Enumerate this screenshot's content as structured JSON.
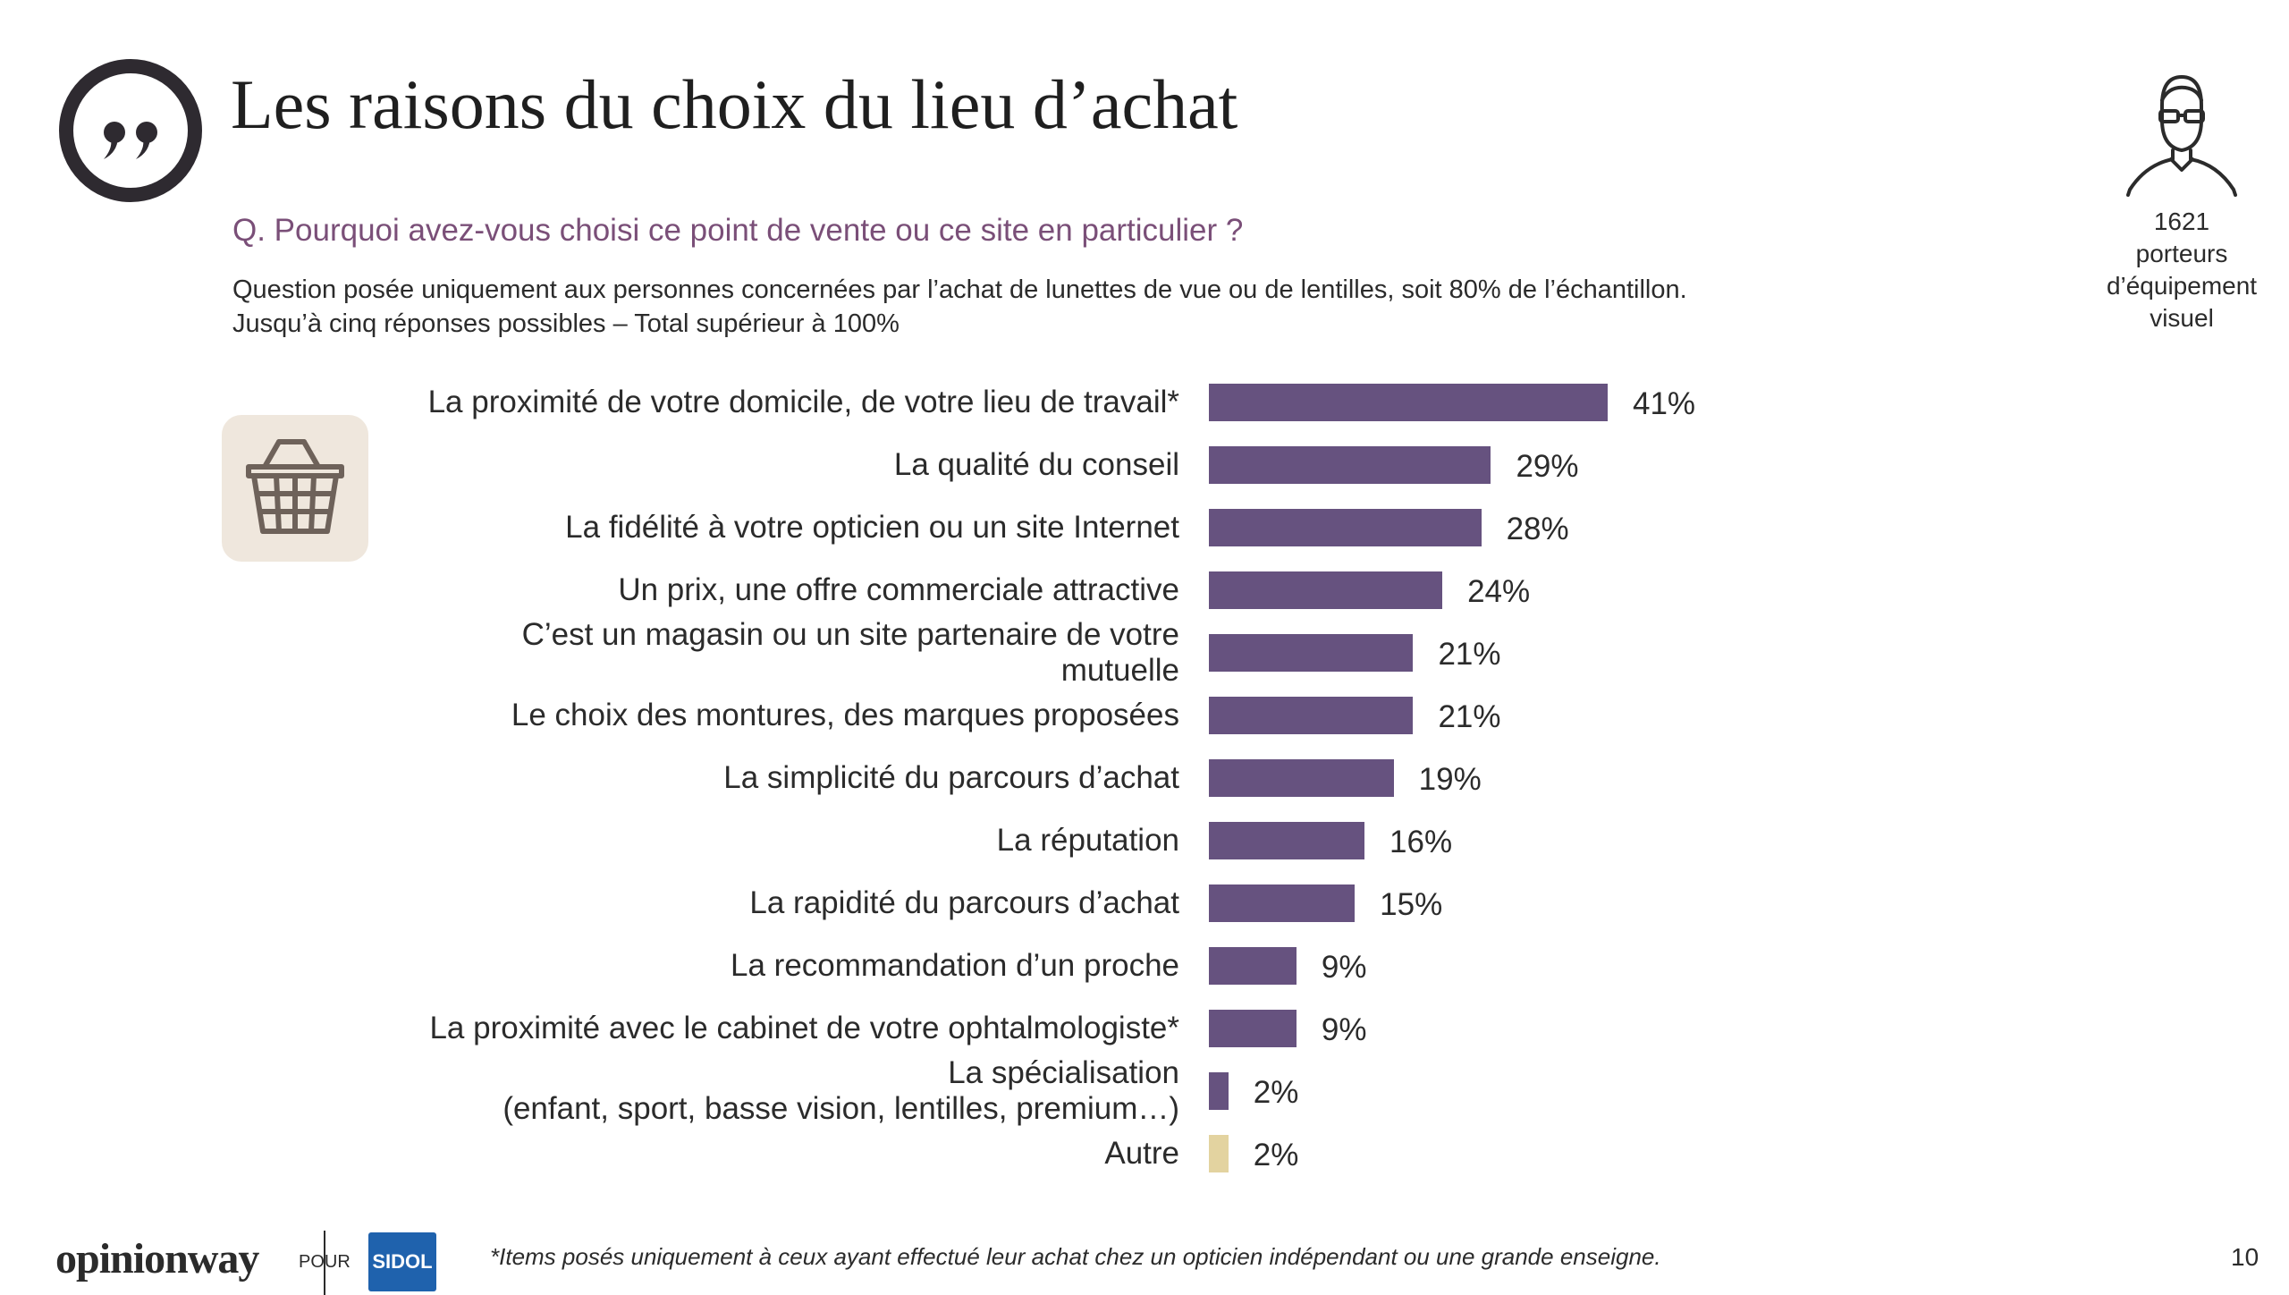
{
  "header": {
    "title": "Les raisons du choix du lieu d’achat",
    "question": "Q. Pourquoi avez-vous choisi ce point de vente ou ce site en particulier ?",
    "note_line1": "Question posée uniquement aux personnes concernées par l’achat de lunettes de vue ou de lentilles, soit 80% de l’échantillon.",
    "note_line2": "Jusqu’à cinq réponses possibles – Total supérieur à 100%"
  },
  "sample": {
    "count": "1621",
    "description_lines": [
      "porteurs",
      "d’équipement",
      "visuel"
    ]
  },
  "icons": {
    "header": "quote-icon",
    "sample": "person-with-glasses-icon",
    "chart": "shopping-basket-icon"
  },
  "colors": {
    "bar_primary": "#66527f",
    "bar_other": "#e3d3a0",
    "question_text": "#7a4f78"
  },
  "chart_data": {
    "type": "bar",
    "orientation": "horizontal",
    "categories": [
      [
        "La proximité de votre domicile, de votre lieu de travail*"
      ],
      [
        "La qualité du conseil"
      ],
      [
        "La fidélité à votre opticien ou un site Internet"
      ],
      [
        "Un prix, une offre commerciale attractive"
      ],
      [
        "C’est un magasin ou un site partenaire de votre",
        "mutuelle"
      ],
      [
        "Le choix des montures, des marques proposées"
      ],
      [
        "La simplicité du parcours d’achat"
      ],
      [
        "La réputation"
      ],
      [
        "La rapidité du parcours d’achat"
      ],
      [
        "La recommandation d’un proche"
      ],
      [
        "La proximité avec le cabinet de votre ophtalmologiste*"
      ],
      [
        "La spécialisation",
        "(enfant, sport, basse vision, lentilles, premium…)"
      ],
      [
        "Autre"
      ]
    ],
    "values": [
      41,
      29,
      28,
      24,
      21,
      21,
      19,
      16,
      15,
      9,
      9,
      2,
      2
    ],
    "value_labels": [
      "41%",
      "29%",
      "28%",
      "24%",
      "21%",
      "21%",
      "19%",
      "16%",
      "15%",
      "9%",
      "9%",
      "2%",
      "2%"
    ],
    "value_unit": "%",
    "highlight": [
      false,
      false,
      false,
      false,
      false,
      false,
      false,
      false,
      false,
      false,
      false,
      false,
      true
    ],
    "xlim": [
      0,
      41
    ],
    "grid": false,
    "legend": false
  },
  "footer": {
    "brand": "opinionway",
    "pour": "POUR",
    "partner": "SIDOL",
    "footnote": "*Items posés uniquement à ceux ayant effectué leur achat chez un opticien indépendant ou une grande enseigne.",
    "page_number": "10"
  }
}
